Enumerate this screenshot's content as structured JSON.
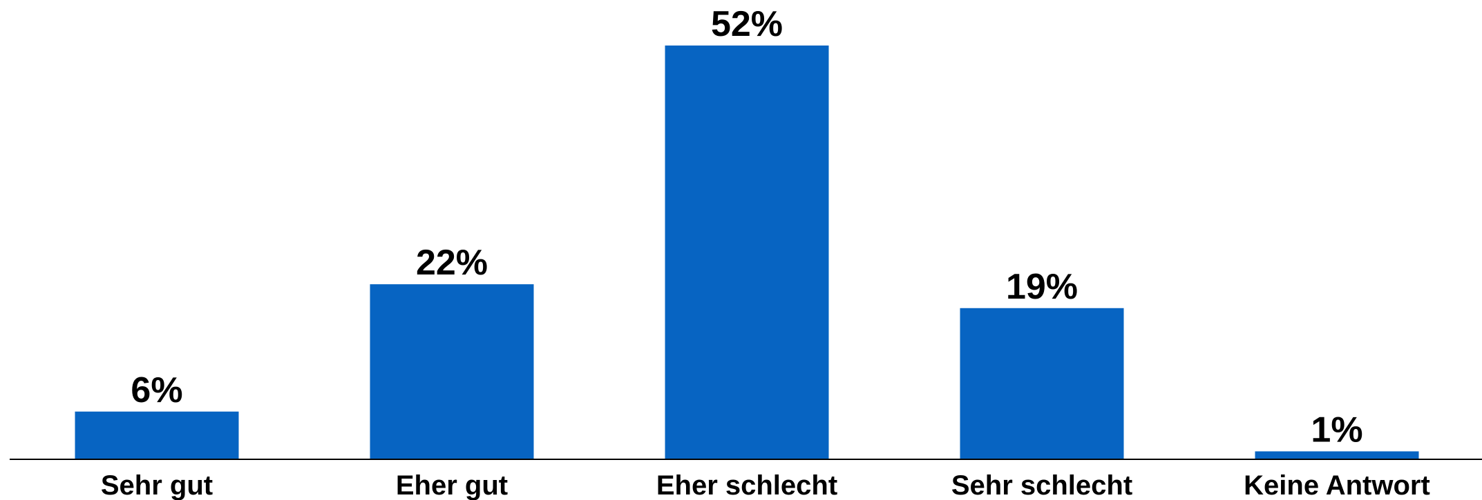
{
  "chart_data": {
    "type": "bar",
    "categories": [
      "Sehr gut",
      "Eher gut",
      "Eher schlecht",
      "Sehr schlecht",
      "Keine Antwort"
    ],
    "values": [
      6,
      22,
      52,
      19,
      1
    ],
    "value_labels": [
      "6%",
      "22%",
      "52%",
      "19%",
      "1%"
    ],
    "unit": "%",
    "ylim": [
      0,
      52
    ],
    "grid": false,
    "legend": "none",
    "bar_color": "#0764C2",
    "axis_color": "#000000"
  }
}
